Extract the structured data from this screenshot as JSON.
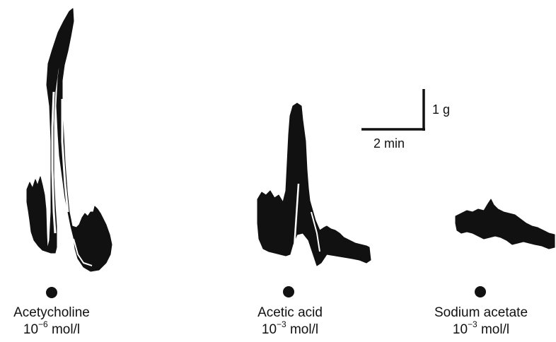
{
  "scale_bar": {
    "vertical_label": "1 g",
    "horizontal_label": "2 min"
  },
  "traces": [
    {
      "id": "acetylcholine",
      "name": "Acetycholine",
      "conc_base": "10",
      "conc_exp": "−6",
      "conc_unit": "mol/l"
    },
    {
      "id": "acetic-acid",
      "name": "Acetic acid",
      "conc_base": "10",
      "conc_exp": "−3",
      "conc_unit": "mol/l"
    },
    {
      "id": "sodium-acetate",
      "name": "Sodium acetate",
      "conc_base": "10",
      "conc_exp": "−3",
      "conc_unit": "mol/l"
    }
  ],
  "colors": {
    "trace": "#111111",
    "background": "#ffffff"
  }
}
